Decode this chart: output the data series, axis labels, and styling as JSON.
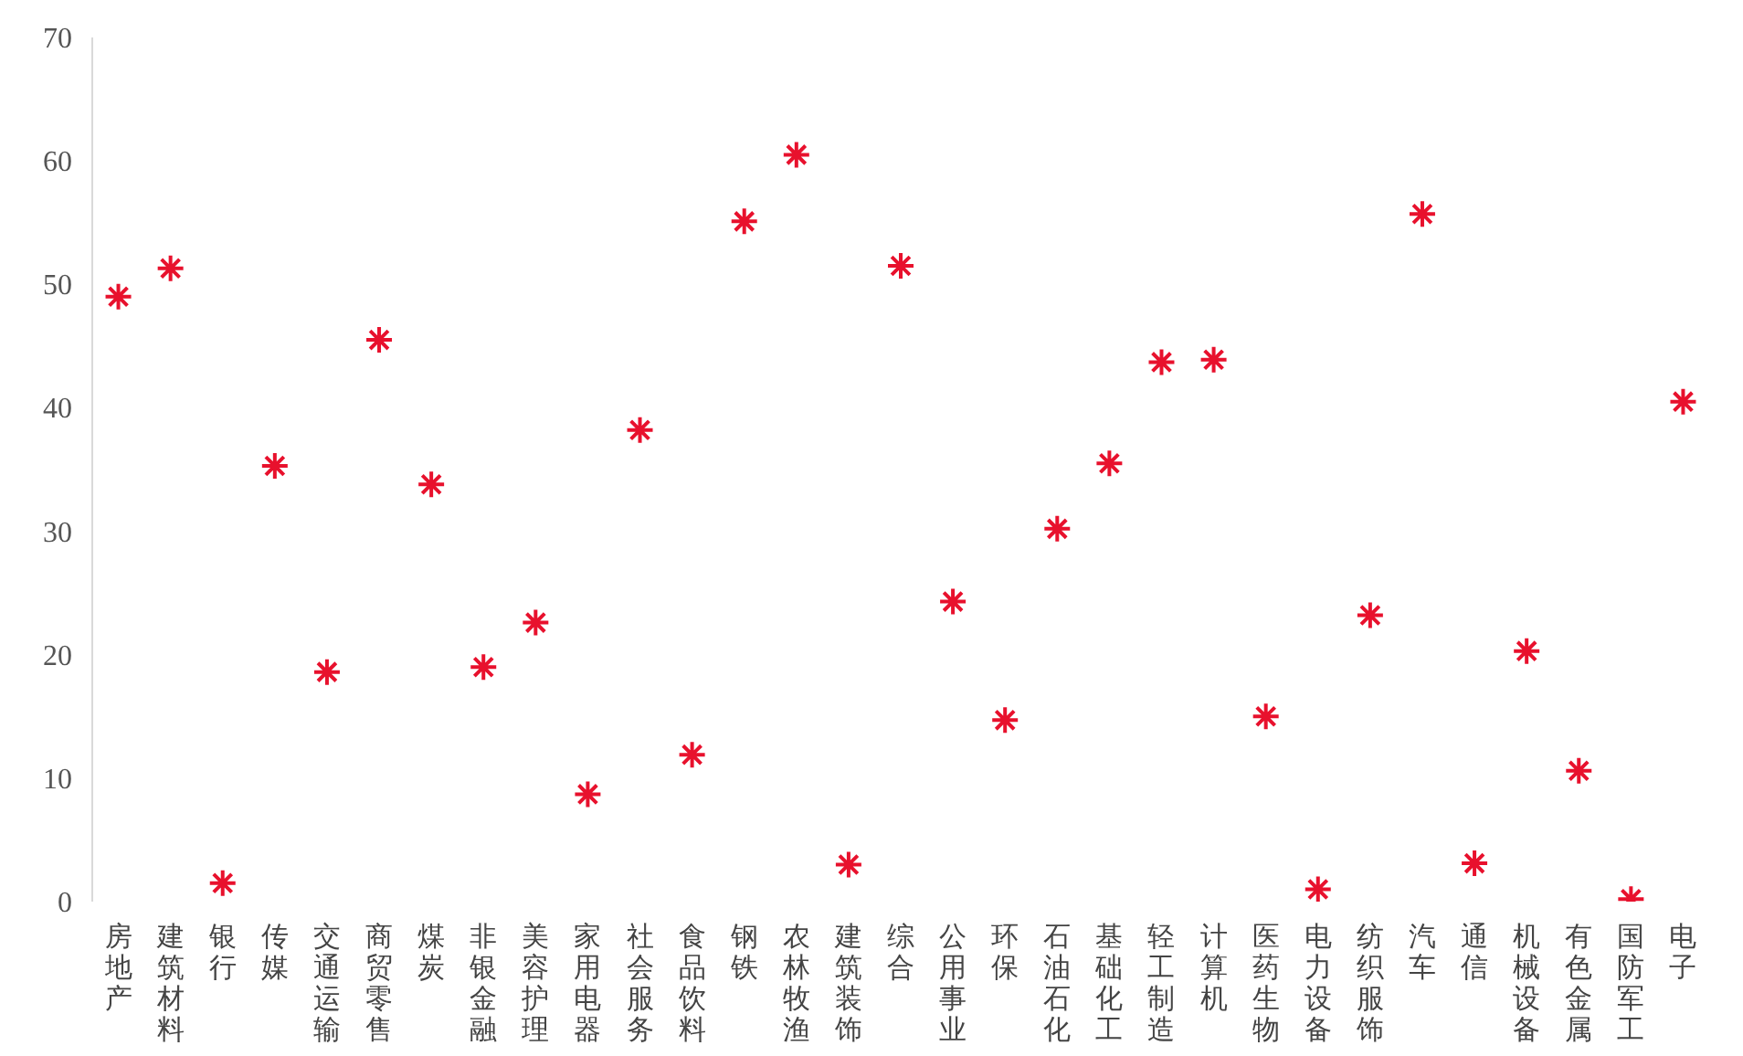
{
  "chart_data": {
    "type": "scatter",
    "categories": [
      "房地产",
      "建筑材料",
      "银行",
      "传媒",
      "交通运输",
      "商贸零售",
      "煤炭",
      "非银金融",
      "美容护理",
      "家用电器",
      "社会服务",
      "食品饮料",
      "钢铁",
      "农林牧渔",
      "建筑装饰",
      "综合",
      "公用事业",
      "环保",
      "石油石化",
      "基础化工",
      "轻工制造",
      "计算机",
      "医药生物",
      "电力设备",
      "纺织服饰",
      "汽车",
      "通信",
      "机械设备",
      "有色金属",
      "国防军工",
      "电子"
    ],
    "values": [
      49,
      51.3,
      1.5,
      35.3,
      18.6,
      45.5,
      33.8,
      19,
      22.6,
      8.7,
      38.2,
      11.9,
      55.1,
      60.5,
      3,
      51.5,
      24.3,
      14.7,
      30.2,
      35.5,
      43.7,
      43.9,
      15,
      1,
      23.2,
      55.7,
      3.1,
      20.3,
      10.6,
      0.2,
      40.5
    ],
    "color": "#e8112d",
    "marker": "cross",
    "ylim": [
      0,
      70
    ],
    "yticks": [
      0,
      10,
      20,
      30,
      40,
      50,
      60,
      70
    ],
    "grid": false
  }
}
